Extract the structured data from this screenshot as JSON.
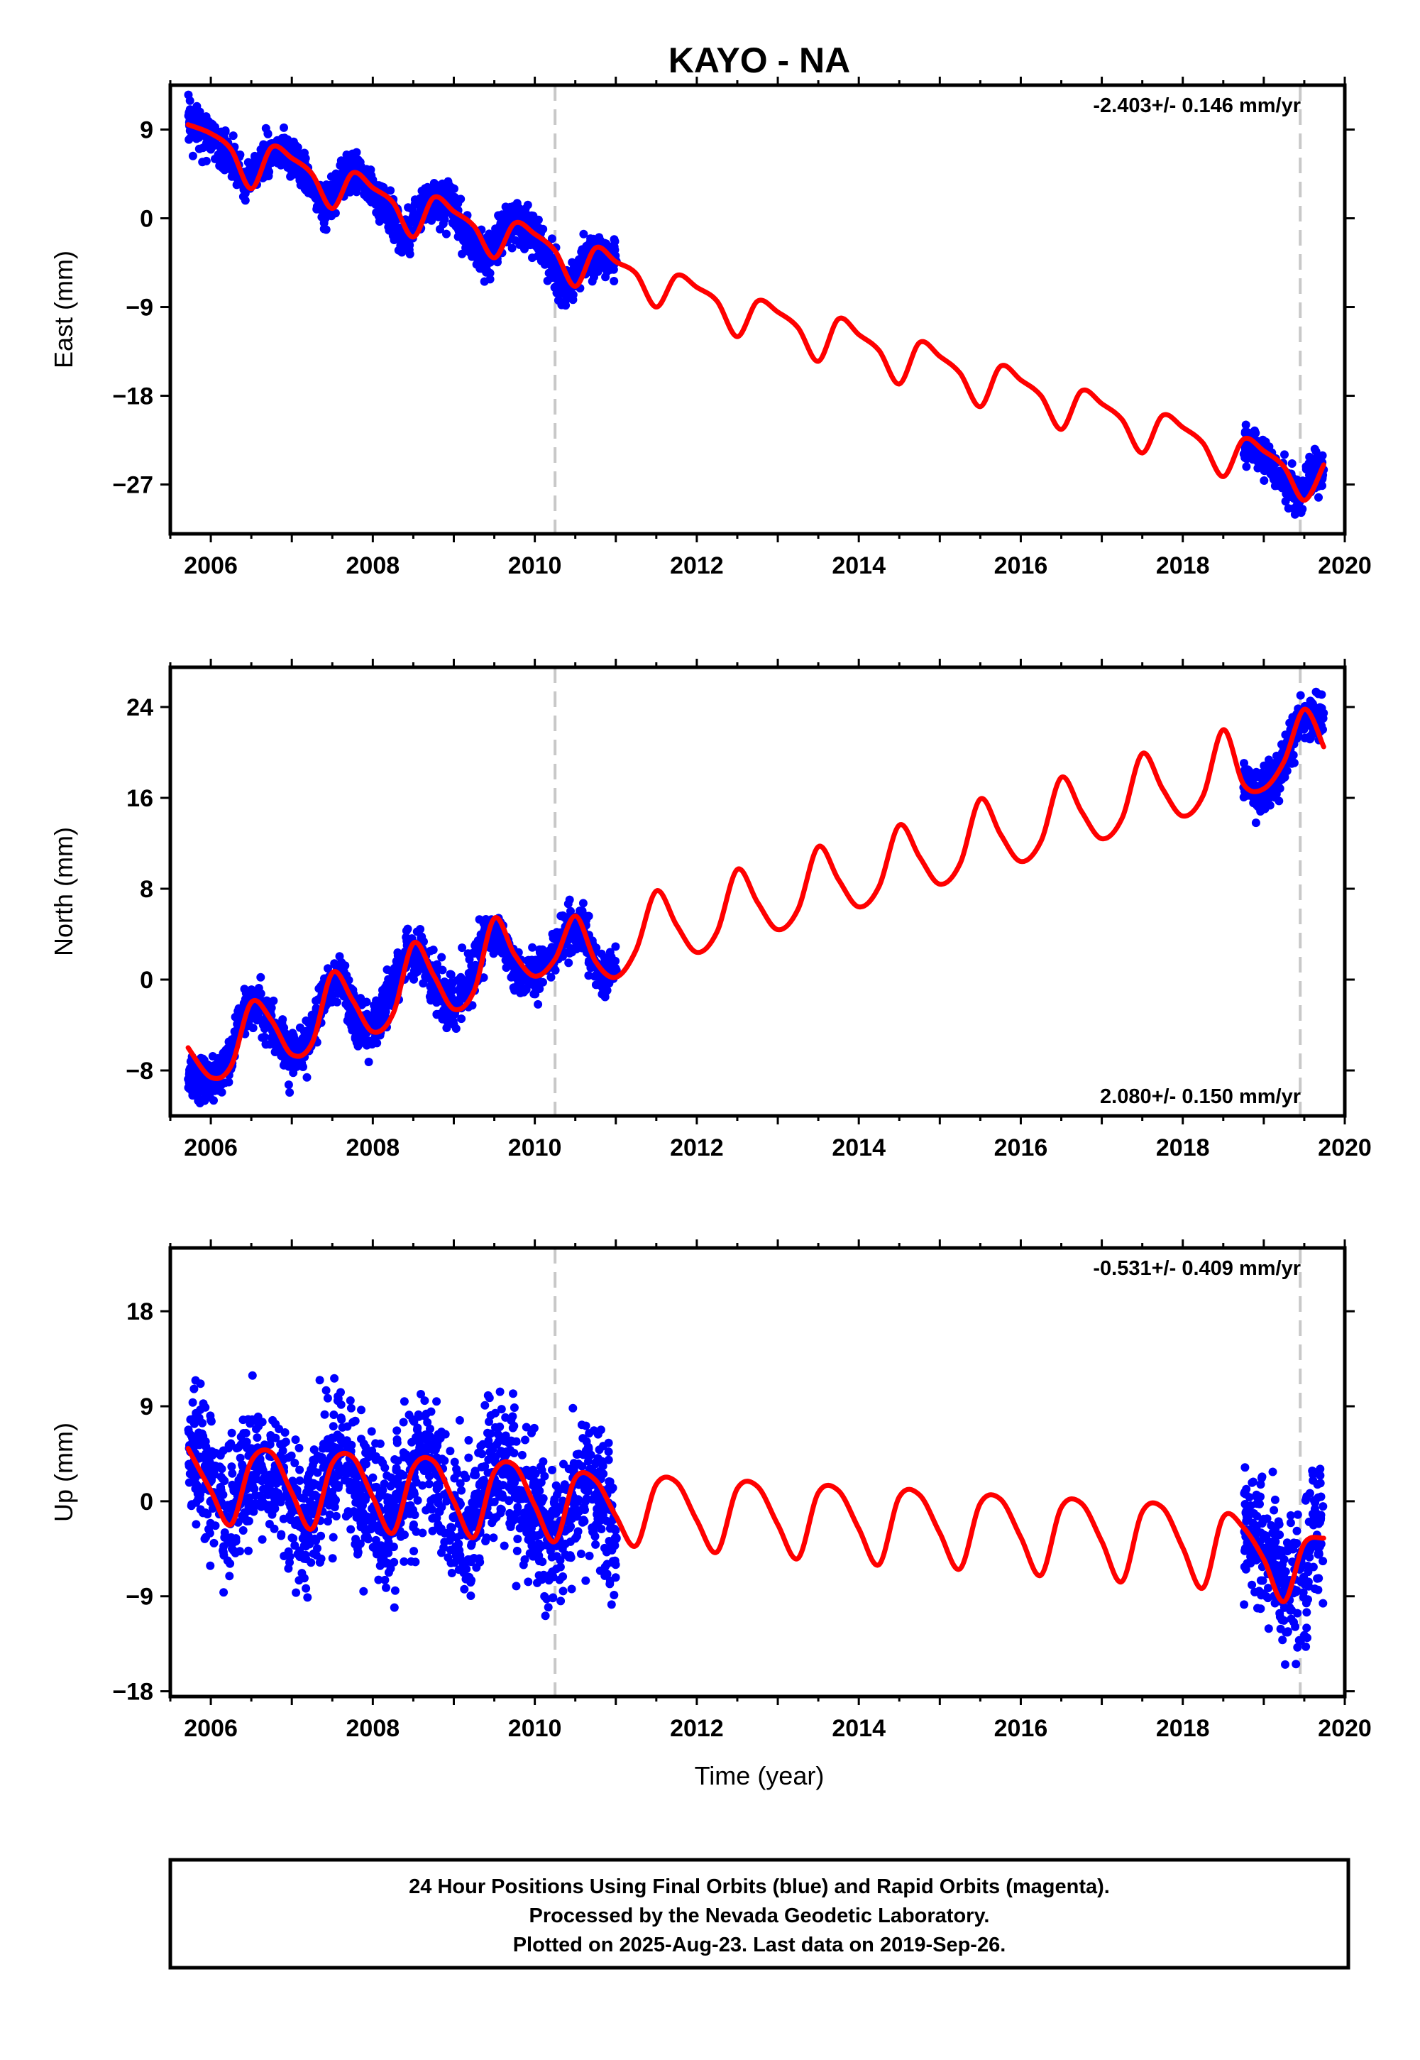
{
  "chart_data": {
    "type": "scatter",
    "title": "KAYO - NA",
    "xlabel": "Time (year)",
    "xlim": [
      2005.5,
      2020.0
    ],
    "x_ticks": [
      "2006",
      "2008",
      "2010",
      "2012",
      "2014",
      "2016",
      "2018",
      "2020"
    ],
    "x_tick_values": [
      2006,
      2008,
      2010,
      2012,
      2014,
      2016,
      2018,
      2020
    ],
    "reference_lines": [
      2010.25,
      2019.45
    ],
    "colors": {
      "data": "#0000ff",
      "model": "#ff0000",
      "reference": "#c8c8c8"
    },
    "data_ranges": [
      [
        2005.72,
        2011.0
      ],
      [
        2018.75,
        2019.74
      ]
    ],
    "panels": [
      {
        "ylabel": "East (mm)",
        "ylim": [
          -32,
          13.5
        ],
        "y_ticks": [
          "9",
          "0",
          "−9",
          "−18",
          "−27"
        ],
        "y_tick_values": [
          9,
          0,
          -9,
          -18,
          -27
        ],
        "rate": "-2.403+/- 0.146 mm/yr",
        "rate_position": "top-right",
        "series": [
          {
            "name": "Final Orbits (blue)",
            "kind": "points",
            "color": "#0000ff",
            "x": [
              2005.8,
              2006.0,
              2006.2,
              2006.4,
              2006.6,
              2006.8,
              2007.0,
              2007.2,
              2007.4,
              2007.6,
              2007.8,
              2008.0,
              2008.2,
              2008.4,
              2008.6,
              2008.8,
              2009.0,
              2009.2,
              2009.4,
              2009.6,
              2009.8,
              2010.0,
              2010.2,
              2010.4,
              2010.6,
              2010.8,
              2011.0,
              2018.8,
              2019.0,
              2019.2,
              2019.4,
              2019.6
            ],
            "y": [
              9.8,
              8.2,
              6.4,
              3.6,
              5.2,
              7.1,
              6.0,
              3.9,
              0.9,
              3.8,
              4.5,
              2.5,
              0.8,
              -1.9,
              0.9,
              1.9,
              0.8,
              -2.1,
              -4.0,
              -1.2,
              -0.2,
              -1.6,
              -4.7,
              -6.9,
              -4.5,
              -3.3,
              -4.4,
              -22.8,
              -24.1,
              -25.8,
              -28.2,
              -26.0
            ]
          },
          {
            "name": "Model",
            "kind": "line",
            "color": "#ff0000",
            "x": [
              2005.72,
              2006.0,
              2006.25,
              2006.5,
              2006.75,
              2007.0,
              2007.25,
              2007.5,
              2007.75,
              2008.0,
              2008.25,
              2008.5,
              2008.75,
              2009.0,
              2009.25,
              2009.5,
              2009.75,
              2010.0,
              2010.25,
              2010.5,
              2010.75,
              2011.0,
              2011.25,
              2011.5,
              2011.75,
              2012.0,
              2012.25,
              2012.5,
              2012.75,
              2013.0,
              2013.25,
              2013.5,
              2013.75,
              2014.0,
              2014.25,
              2014.5,
              2014.75,
              2015.0,
              2015.25,
              2015.5,
              2015.75,
              2016.0,
              2016.25,
              2016.5,
              2016.75,
              2017.0,
              2017.25,
              2017.5,
              2017.75,
              2018.0,
              2018.25,
              2018.5,
              2018.75,
              2019.0,
              2019.25,
              2019.5,
              2019.74
            ],
            "y": [
              9.5,
              8.6,
              7.0,
              3.0,
              7.2,
              6.1,
              4.5,
              1.0,
              4.6,
              3.1,
              1.6,
              -1.9,
              2.1,
              0.7,
              -0.8,
              -4.0,
              -0.5,
              -1.6,
              -3.3,
              -6.9,
              -3.0,
              -4.4,
              -5.6,
              -9.0,
              -5.8,
              -7.0,
              -8.4,
              -12.0,
              -8.4,
              -9.5,
              -11.1,
              -14.5,
              -10.2,
              -11.8,
              -13.4,
              -16.8,
              -12.6,
              -14.0,
              -15.7,
              -19.1,
              -15.0,
              -16.4,
              -18.0,
              -21.4,
              -17.5,
              -18.8,
              -20.4,
              -23.8,
              -20.0,
              -21.2,
              -22.8,
              -26.2,
              -22.4,
              -23.6,
              -25.2,
              -28.6,
              -25.0
            ]
          }
        ]
      },
      {
        "ylabel": "North (mm)",
        "ylim": [
          -12,
          27.5
        ],
        "y_ticks": [
          "24",
          "16",
          "8",
          "0",
          "−8"
        ],
        "y_tick_values": [
          24,
          16,
          8,
          0,
          -8
        ],
        "rate": "2.080+/- 0.150 mm/yr",
        "rate_position": "bottom-right",
        "series": [
          {
            "name": "Final Orbits (blue)",
            "kind": "points",
            "color": "#0000ff",
            "x": [
              2005.8,
              2006.0,
              2006.2,
              2006.4,
              2006.6,
              2006.8,
              2007.0,
              2007.2,
              2007.4,
              2007.6,
              2007.8,
              2008.0,
              2008.2,
              2008.4,
              2008.6,
              2008.8,
              2009.0,
              2009.2,
              2009.4,
              2009.6,
              2009.8,
              2010.0,
              2010.2,
              2010.4,
              2010.6,
              2010.8,
              2011.0,
              2018.8,
              2019.0,
              2019.2,
              2019.4,
              2019.6
            ],
            "y": [
              -8.3,
              -9.2,
              -7.5,
              -3.0,
              -2.0,
              -5.0,
              -6.8,
              -5.9,
              -1.0,
              0.3,
              -3.8,
              -4.4,
              -1.4,
              2.2,
              2.0,
              -1.4,
              -2.2,
              0.2,
              4.1,
              3.4,
              0.5,
              0.6,
              1.9,
              4.6,
              4.2,
              0.5,
              0.8,
              17.5,
              16.4,
              18.2,
              22.1,
              23.4
            ]
          },
          {
            "name": "Model",
            "kind": "line",
            "color": "#ff0000",
            "x": [
              2005.72,
              2006.0,
              2006.25,
              2006.5,
              2006.75,
              2007.0,
              2007.25,
              2007.5,
              2007.75,
              2008.0,
              2008.25,
              2008.5,
              2008.75,
              2009.0,
              2009.25,
              2009.5,
              2009.75,
              2010.0,
              2010.25,
              2010.5,
              2010.75,
              2011.0,
              2011.25,
              2011.5,
              2011.75,
              2012.0,
              2012.25,
              2012.5,
              2012.75,
              2013.0,
              2013.25,
              2013.5,
              2013.75,
              2014.0,
              2014.25,
              2014.5,
              2014.75,
              2015.0,
              2015.25,
              2015.5,
              2015.75,
              2016.0,
              2016.25,
              2016.5,
              2016.75,
              2017.0,
              2017.25,
              2017.5,
              2017.75,
              2018.0,
              2018.25,
              2018.5,
              2018.75,
              2019.0,
              2019.25,
              2019.5,
              2019.74
            ],
            "y": [
              -6.0,
              -8.6,
              -7.6,
              -2.0,
              -3.6,
              -6.6,
              -5.6,
              0.6,
              -1.8,
              -4.6,
              -3.0,
              3.2,
              0.4,
              -2.6,
              -1.0,
              5.4,
              2.2,
              0.3,
              1.8,
              5.6,
              1.6,
              0.2,
              2.6,
              7.8,
              4.8,
              2.4,
              4.2,
              9.7,
              6.8,
              4.4,
              6.2,
              11.7,
              8.8,
              6.4,
              8.2,
              13.6,
              10.8,
              8.4,
              10.2,
              15.9,
              12.8,
              10.4,
              12.2,
              17.8,
              14.8,
              12.4,
              14.2,
              19.9,
              16.8,
              14.4,
              16.2,
              22.0,
              17.2,
              16.8,
              19.2,
              23.8,
              20.5
            ]
          }
        ]
      },
      {
        "ylabel": "Up (mm)",
        "ylim": [
          -18.5,
          24.0
        ],
        "y_ticks": [
          "18",
          "9",
          "0",
          "−9",
          "−18"
        ],
        "y_tick_values": [
          18,
          9,
          0,
          -9,
          -18
        ],
        "rate": "-0.531+/- 0.409 mm/yr",
        "rate_position": "top-right",
        "series": [
          {
            "name": "Final Orbits (blue)",
            "kind": "points",
            "color": "#0000ff",
            "x": [
              2005.8,
              2006.0,
              2006.2,
              2006.4,
              2006.6,
              2006.8,
              2007.0,
              2007.2,
              2007.4,
              2007.6,
              2007.8,
              2008.0,
              2008.2,
              2008.4,
              2008.6,
              2008.8,
              2009.0,
              2009.2,
              2009.4,
              2009.6,
              2009.8,
              2010.0,
              2010.2,
              2010.4,
              2010.6,
              2010.8,
              2011.0,
              2018.8,
              2019.0,
              2019.2,
              2019.4,
              2019.6
            ],
            "y": [
              4.5,
              2.0,
              -1.5,
              1.5,
              4.0,
              2.5,
              -0.5,
              -2.0,
              2.0,
              4.5,
              1.0,
              -1.5,
              -2.5,
              1.5,
              4.0,
              1.5,
              -1.5,
              -2.5,
              1.5,
              3.5,
              1.0,
              -2.0,
              -4.0,
              -1.0,
              2.0,
              0.5,
              -3.5,
              -1.5,
              -4.5,
              -7.5,
              -8.5,
              -4.0
            ]
          },
          {
            "name": "Model",
            "kind": "line",
            "color": "#ff0000",
            "x": [
              2005.72,
              2006.0,
              2006.25,
              2006.5,
              2006.75,
              2007.0,
              2007.25,
              2007.5,
              2007.75,
              2008.0,
              2008.25,
              2008.5,
              2008.75,
              2009.0,
              2009.25,
              2009.5,
              2009.75,
              2010.0,
              2010.25,
              2010.5,
              2010.75,
              2011.0,
              2011.25,
              2011.5,
              2011.75,
              2012.0,
              2012.25,
              2012.5,
              2012.75,
              2013.0,
              2013.25,
              2013.5,
              2013.75,
              2014.0,
              2014.25,
              2014.5,
              2014.75,
              2015.0,
              2015.25,
              2015.5,
              2015.75,
              2016.0,
              2016.25,
              2016.5,
              2016.75,
              2017.0,
              2017.25,
              2017.5,
              2017.75,
              2018.0,
              2018.25,
              2018.5,
              2018.75,
              2019.0,
              2019.25,
              2019.5,
              2019.74
            ],
            "y": [
              5.0,
              1.0,
              -2.2,
              3.8,
              4.6,
              0.8,
              -2.6,
              3.6,
              4.2,
              0.4,
              -3.0,
              3.2,
              3.8,
              0.0,
              -3.4,
              2.8,
              3.4,
              -0.4,
              -3.8,
              2.2,
              2.0,
              -1.4,
              -4.2,
              1.6,
              1.8,
              -1.8,
              -4.8,
              1.2,
              1.4,
              -2.2,
              -5.4,
              0.8,
              1.0,
              -2.6,
              -6.0,
              0.4,
              0.6,
              -3.0,
              -6.4,
              -0.2,
              0.2,
              -3.4,
              -7.0,
              -0.6,
              -0.2,
              -3.8,
              -7.6,
              -1.0,
              -0.6,
              -4.4,
              -8.2,
              -1.5,
              -2.5,
              -5.5,
              -9.5,
              -4.0,
              -3.5
            ]
          }
        ]
      }
    ]
  },
  "footer": {
    "line1": "24 Hour Positions Using Final Orbits (blue) and Rapid Orbits (magenta).",
    "line2": "Processed by the Nevada Geodetic Laboratory.",
    "line3": "Plotted on 2025-Aug-23. Last data on 2019-Sep-26."
  }
}
